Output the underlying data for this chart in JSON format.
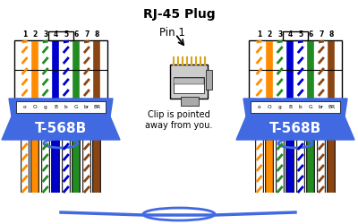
{
  "bg_color": "#ffffff",
  "wire_colors_T568B": [
    {
      "color": "#ffffff",
      "stripe": "#ff8c00",
      "label": "o"
    },
    {
      "color": "#ff8c00",
      "stripe": null,
      "label": "O"
    },
    {
      "color": "#ffffff",
      "stripe": "#228B22",
      "label": "g"
    },
    {
      "color": "#0000cd",
      "stripe": null,
      "label": "B"
    },
    {
      "color": "#ffffff",
      "stripe": "#0000cd",
      "label": "b"
    },
    {
      "color": "#228B22",
      "stripe": null,
      "label": "G"
    },
    {
      "color": "#ffffff",
      "stripe": "#8B4513",
      "label": "br"
    },
    {
      "color": "#8B4513",
      "stripe": null,
      "label": "BR"
    }
  ],
  "connector_blue": "#4169E1",
  "connector_label": "T-568B",
  "rj45_title": "RJ-45 Plug",
  "pin1_label": "Pin 1",
  "clip_text": "Clip is pointed\naway from you.",
  "pin_numbers": [
    "1",
    "2",
    "3",
    "4",
    "5",
    "6",
    "7",
    "8"
  ],
  "connector_text_color": "#ffffff"
}
